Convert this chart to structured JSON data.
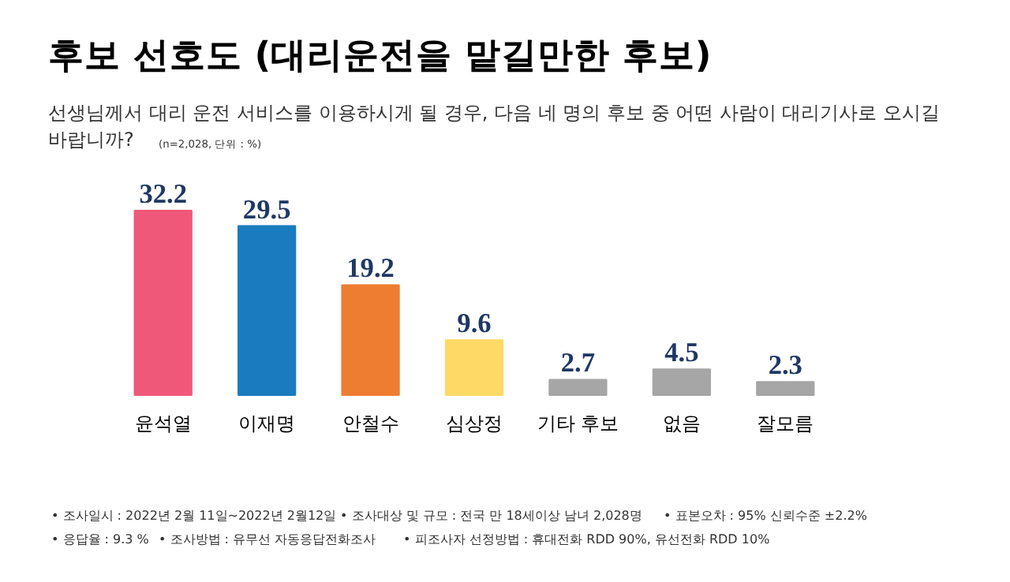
{
  "chart_data": {
    "type": "bar",
    "title": "후보 선호도 (대리운전을 맡길만한 후보)",
    "subtitle": "선생님께서 대리 운전 서비스를 이용하시게 될 경우, 다음 네 명의 후보 중 어떤 사람이 대리기사로 오시길 바랍니까?",
    "categories": [
      "윤석열",
      "이재명",
      "안철수",
      "심상정",
      "기타 후보",
      "없음",
      "잘모름"
    ],
    "values": [
      32.2,
      29.5,
      19.2,
      9.6,
      2.7,
      4.5,
      2.3
    ],
    "colors": [
      "#f0587a",
      "#1b7bbf",
      "#ee7d31",
      "#ffd966",
      "#a6a6a6",
      "#a6a6a6",
      "#a6a6a6"
    ],
    "tick_labels": "x",
    "data_labels": true,
    "annotations": [
      "(n=2,028, 단위 : %)",
      "• 조사일시 : 2022년 2월 11일~2022년 2월12일",
      "• 조사대상 및 규모 : 전국 만 18세이상  남녀  2,028명",
      "• 표본오차 : 95% 신뢰수준 ±2.2%",
      "• 응답율 : 9.3 %",
      "• 조사방법 : 유무선 자동응답전화조사",
      "• 피조사자 선정방법 : 휴대전화 RDD  90%, 유선전화 RDD  10%"
    ]
  }
}
